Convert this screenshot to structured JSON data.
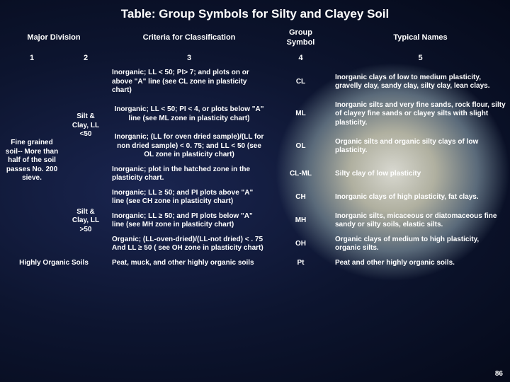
{
  "title": "Table: Group Symbols for Silty and Clayey Soil",
  "headers": {
    "major_division_span": "Major Division",
    "criteria": "Criteria for Classification",
    "group_symbol": "Group Symbol",
    "typical_names": "Typical Names"
  },
  "numrow": {
    "c1": "1",
    "c2": "2",
    "c3": "3",
    "c4": "4",
    "c5": "5"
  },
  "major_division": "Fine grained soil-- More than half of the soil passes No. 200 sieve.",
  "sub_lt50": "Silt & Clay, LL <50",
  "sub_gt50": "Silt & Clay, LL >50",
  "highly_organic": "Highly Organic Soils",
  "rows": [
    {
      "criteria": "Inorganic; LL < 50; PI> 7; and plots on or above \"A\" line (see CL zone in plasticity chart)",
      "symbol": "CL",
      "names": "Inorganic clays of low to medium plasticity, gravelly clay, sandy clay, silty clay, lean clays."
    },
    {
      "criteria": "Inorganic; LL < 50; PI < 4, or plots below \"A\" line\n(see ML zone in plasticity chart)",
      "symbol": "ML",
      "names": "Inorganic silts and very fine sands, rock flour, silty of clayey fine sands or clayey silts with slight plasticity."
    },
    {
      "criteria": "Inorganic; (LL for oven dried sample)/(LL for non dried sample) < 0. 75; and LL < 50 (see OL zone in plasticity chart)",
      "symbol": "OL",
      "names": "Organic silts and organic silty clays of low plasticity."
    },
    {
      "criteria": "Inorganic; plot in the hatched zone in the plasticity chart.",
      "symbol": "CL-ML",
      "names": "Silty clay of low plasticity"
    },
    {
      "criteria": "Inorganic; LL ≥ 50; and PI plots above \"A\" line\n(see CH zone in plasticity chart)",
      "symbol": "CH",
      "names": "Inorganic clays of high plasticity, fat clays."
    },
    {
      "criteria": "Inorganic; LL ≥ 50; and PI plots below \"A\" line\n(see MH zone in plasticity chart)",
      "symbol": "MH",
      "names": "Inorganic silts, micaceous or diatomaceous fine sandy or silty soils, elastic silts."
    },
    {
      "criteria": "Organic; (LL-oven-dried)/(LL-not dried) < . 75\nAnd LL ≥ 50 ( see OH zone in plasticity chart)",
      "symbol": "OH",
      "names": "Organic clays of medium to high plasticity, organic silts."
    },
    {
      "criteria": "Peat, muck, and other highly organic soils",
      "symbol": "Pt",
      "names": "Peat and other highly organic soils."
    }
  ],
  "page_num": "86"
}
